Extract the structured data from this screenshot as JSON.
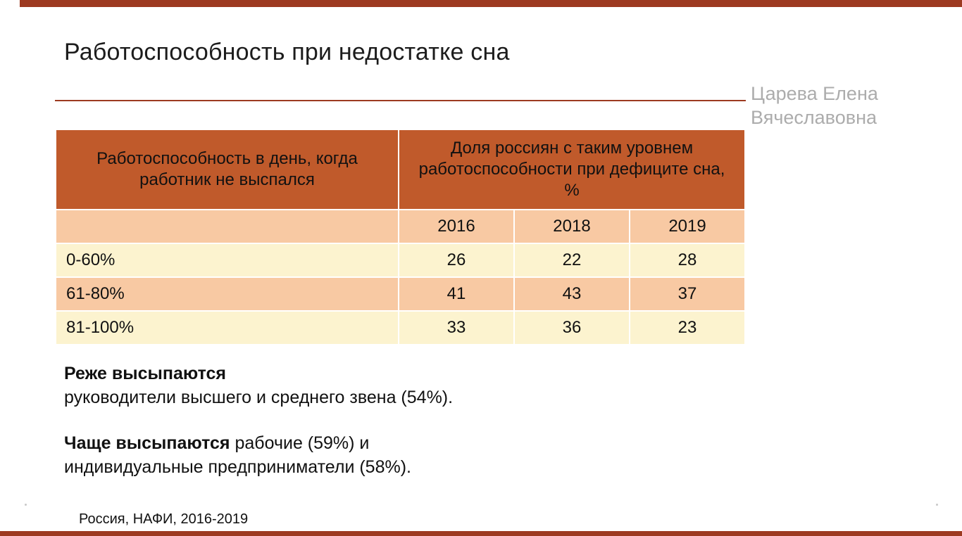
{
  "slide": {
    "title": "Работоспособность при недостатке сна",
    "author": {
      "line1": "Царева Елена",
      "line2": "Вячеславовна"
    },
    "footer": "Россия, НАФИ, 2016-2019"
  },
  "table": {
    "header_col1": "Работоспособность в день, когда работник не выспался",
    "header_col2": "Доля россиян с таким уровнем работоспособности при дефиците сна, %",
    "years": [
      "2016",
      "2018",
      "2019"
    ],
    "rows": [
      {
        "label": "0-60%",
        "values": [
          "26",
          "22",
          "28"
        ]
      },
      {
        "label": "61-80%",
        "values": [
          "41",
          "43",
          "37"
        ]
      },
      {
        "label": "81-100%",
        "values": [
          "33",
          "36",
          "23"
        ]
      }
    ]
  },
  "notes": {
    "p1_bold": "Реже высыпаются",
    "p1_text": "руководители высшего и среднего звена (54%).",
    "p2_bold": "Чаще высыпаются",
    "p2_text": " рабочие (59%) и",
    "p2_line2": "индивидуальные предприниматели (58%)."
  },
  "colors": {
    "accent_bar": "#9D3A21",
    "table_header": "#C05A2B",
    "row_peach": "#F8C9A3",
    "row_yellow": "#FCF3CF",
    "author_gray": "#ACACAC"
  }
}
